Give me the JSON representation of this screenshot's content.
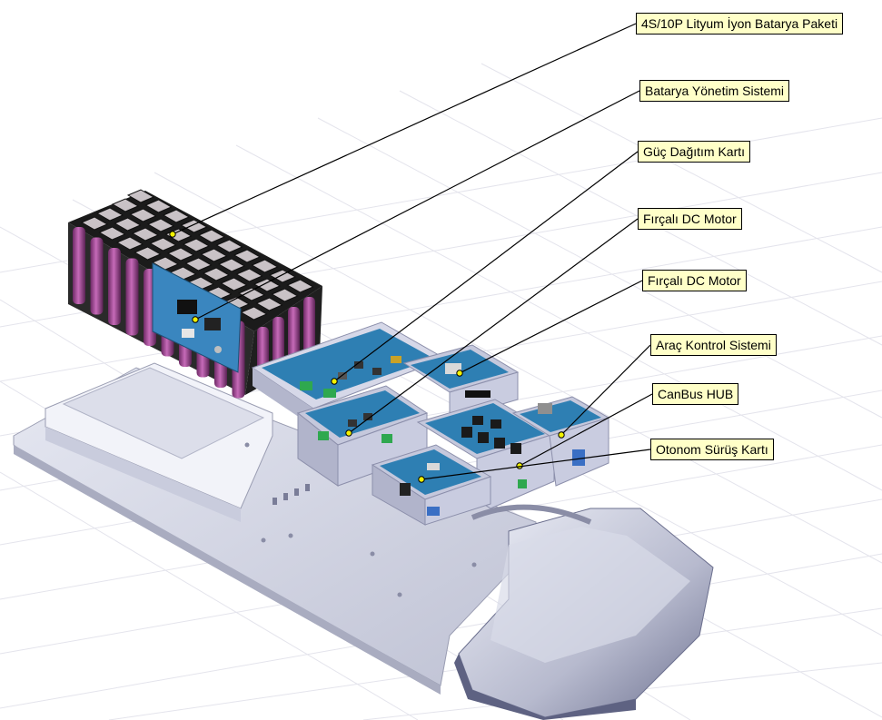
{
  "diagram": {
    "components": [
      {
        "id": "battery-pack",
        "label": "4S/10P Lityum İyon Batarya Paketi"
      },
      {
        "id": "bms",
        "label": "Batarya Yönetim Sistemi"
      },
      {
        "id": "power-distribution",
        "label": "Güç Dağıtım Kartı"
      },
      {
        "id": "dc-motor-1",
        "label": "Fırçalı DC Motor"
      },
      {
        "id": "dc-motor-2",
        "label": "Fırçalı DC Motor"
      },
      {
        "id": "vehicle-control",
        "label": "Araç Kontrol Sistemi"
      },
      {
        "id": "canbus-hub",
        "label": "CanBus HUB"
      },
      {
        "id": "autonomous-driving",
        "label": "Otonom Sürüş Kartı"
      }
    ]
  },
  "colors": {
    "callout_fill": "#ffffc8",
    "leader_line": "#000000",
    "leader_dot": "#f2f200",
    "chassis": "#d6d8e6",
    "enclosure": "#c5c8dc",
    "pcb": "#2e7fb3",
    "cells": "#9c3f8f",
    "cell_holder": "#1b1b1b",
    "bms_board": "#3a86bf",
    "grid": "#e4e4ec"
  },
  "icons": [
    "leader-dot",
    "pcb-board",
    "battery-cell"
  ]
}
